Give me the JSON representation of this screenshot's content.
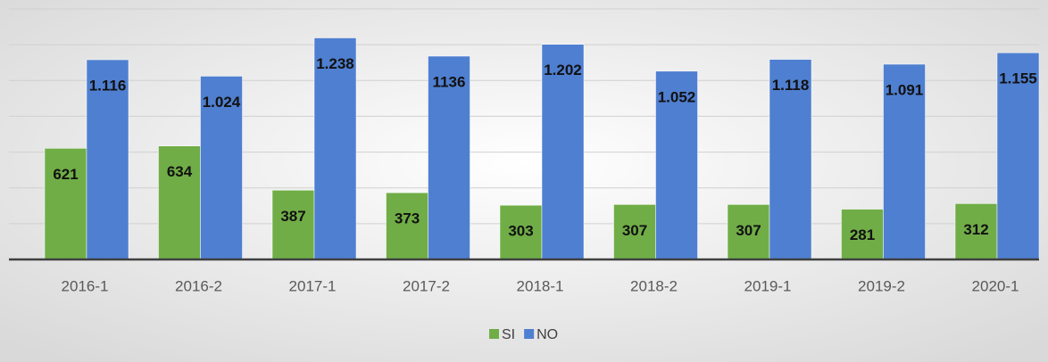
{
  "chart_data": {
    "type": "bar",
    "categories": [
      "2016-1",
      "2016-2",
      "2017-1",
      "2017-2",
      "2018-1",
      "2018-2",
      "2019-1",
      "2019-2",
      "2020-1"
    ],
    "series": [
      {
        "name": "SI",
        "color": "#70ad47",
        "values": [
          621,
          634,
          387,
          373,
          303,
          307,
          307,
          281,
          312
        ]
      },
      {
        "name": "NO",
        "color": "#4f7fd0",
        "values": [
          1116,
          1024,
          1238,
          1136,
          1202,
          1052,
          1118,
          1091,
          1155
        ],
        "value_labels": [
          "1.116",
          "1.024",
          "1.238",
          "1136",
          "1.202",
          "1.052",
          "1.118",
          "1.091",
          "1.155"
        ]
      }
    ],
    "ylim": [
      0,
      1400
    ],
    "yticks": [
      0,
      200,
      400,
      600,
      800,
      1000,
      1200,
      1400
    ],
    "grid": true,
    "legend": "bottom"
  }
}
